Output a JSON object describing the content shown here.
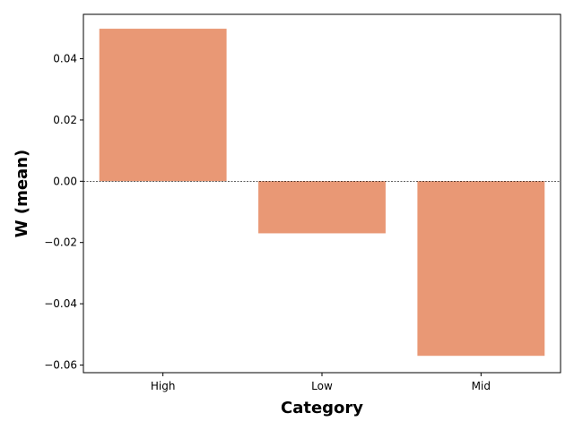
{
  "chart_data": {
    "type": "bar",
    "title": "",
    "xlabel": "Category",
    "ylabel": "W (mean)",
    "categories": [
      "High",
      "Low",
      "Mid"
    ],
    "values": [
      0.0498,
      -0.017,
      -0.057
    ],
    "ylim": [
      -0.0625,
      0.0545
    ],
    "yticks": [
      -0.06,
      -0.04,
      -0.02,
      0.0,
      0.02,
      0.04
    ],
    "ytick_labels": [
      "−0.06",
      "−0.04",
      "−0.02",
      "0.00",
      "0.02",
      "0.04"
    ],
    "bar_color": "#e99875",
    "zero_line": true,
    "grid": false,
    "legend": "none"
  }
}
